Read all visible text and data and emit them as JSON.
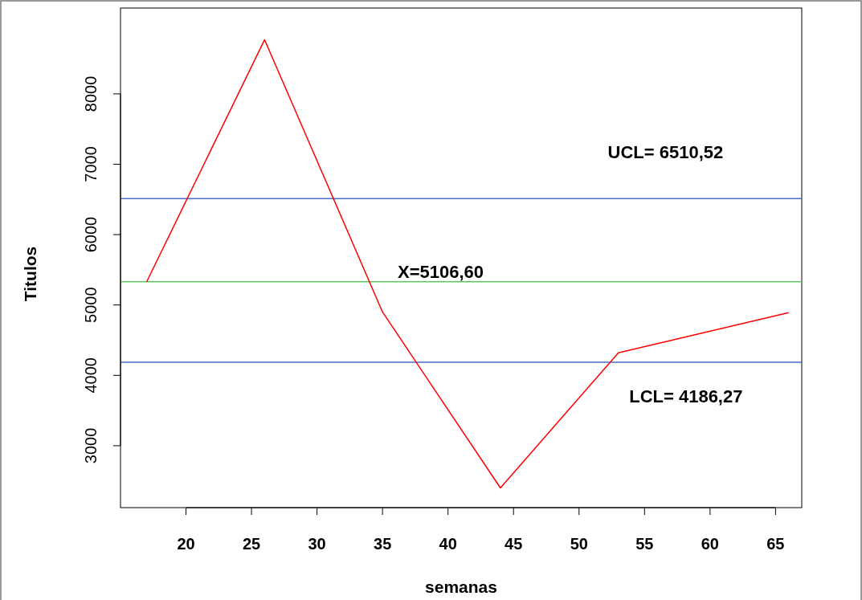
{
  "chart_data": {
    "type": "line",
    "xlabel": "semanas",
    "ylabel": "Titulos",
    "x": [
      17,
      26,
      35,
      44,
      53,
      66
    ],
    "series": [
      {
        "color": "#ff0000",
        "values": [
          5330,
          8770,
          4900,
          2400,
          4320,
          4890
        ]
      }
    ],
    "xlim": [
      15,
      67
    ],
    "ylim": [
      2120,
      9220
    ],
    "xticks": [
      20,
      25,
      30,
      35,
      40,
      45,
      50,
      55,
      60,
      65
    ],
    "yticks": [
      3000,
      4000,
      5000,
      6000,
      7000,
      8000
    ],
    "ref_lines": [
      {
        "axis": "y",
        "value": 6510.52,
        "label": "UCL= 6510,52",
        "color": "#4a6cc8"
      },
      {
        "axis": "y",
        "value": 5330,
        "color": "#5ec85e"
      },
      {
        "axis": "y",
        "value": 4186.27,
        "label": "LCL= 4186,27",
        "color": "#4a6cc8"
      }
    ],
    "annotations": [
      "X=5106,60"
    ],
    "grid": false,
    "line_style": "solid"
  }
}
